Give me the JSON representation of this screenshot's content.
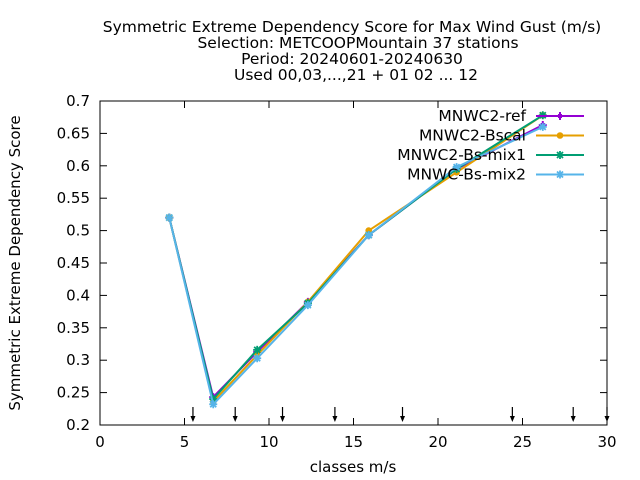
{
  "chart_data": {
    "type": "line",
    "title_lines": [
      "Symmetric Extreme Dependency Score  for Max Wind Gust (m/s)",
      "Selection: METCOOPMountain     37 stations",
      "Period: 20240601-20240630",
      "Used 00,03,...,21 + 01 02 ... 12"
    ],
    "xlabel": "classes m/s",
    "ylabel": "Symmetric Extreme Dependency Score",
    "xlim": [
      0,
      30
    ],
    "ylim": [
      0.2,
      0.7
    ],
    "xticks": [
      "0",
      "5",
      "10",
      "15",
      "20",
      "25",
      "30"
    ],
    "yticks": [
      "0.2",
      "0.25",
      "0.3",
      "0.35",
      "0.4",
      "0.45",
      "0.5",
      "0.55",
      "0.6",
      "0.65",
      "0.7"
    ],
    "class_boundaries": [
      5.5,
      8,
      10.8,
      13.9,
      17.9,
      24.4,
      28,
      30
    ],
    "grid": false,
    "legend_position": "top-right",
    "series": [
      {
        "name": "MNWC2-ref",
        "color": "#9400d3",
        "marker": "plus",
        "x": [
          4.1,
          6.7,
          9.3,
          12.3,
          15.9,
          21.1,
          26.2
        ],
        "y": [
          0.52,
          0.243,
          0.313,
          0.39,
          0.493,
          0.595,
          0.663
        ]
      },
      {
        "name": "MNWC2-Bscal",
        "color": "#e69f00",
        "marker": "circle",
        "x": [
          4.1,
          6.7,
          9.3,
          12.3,
          15.9,
          21.1,
          26.2
        ],
        "y": [
          0.52,
          0.236,
          0.308,
          0.39,
          0.5,
          0.59,
          0.678
        ]
      },
      {
        "name": "MNWC2-Bs-mix1",
        "color": "#009e73",
        "marker": "star",
        "x": [
          4.1,
          6.7,
          9.3,
          12.3,
          15.9,
          21.1,
          26.2
        ],
        "y": [
          0.52,
          0.24,
          0.316,
          0.388,
          0.493,
          0.595,
          0.678
        ]
      },
      {
        "name": "MNWC-Bs-mix2",
        "color": "#56b4e9",
        "marker": "star",
        "x": [
          4.1,
          6.7,
          9.3,
          12.3,
          15.9,
          21.1,
          26.2
        ],
        "y": [
          0.52,
          0.232,
          0.303,
          0.385,
          0.493,
          0.598,
          0.66
        ]
      }
    ]
  }
}
